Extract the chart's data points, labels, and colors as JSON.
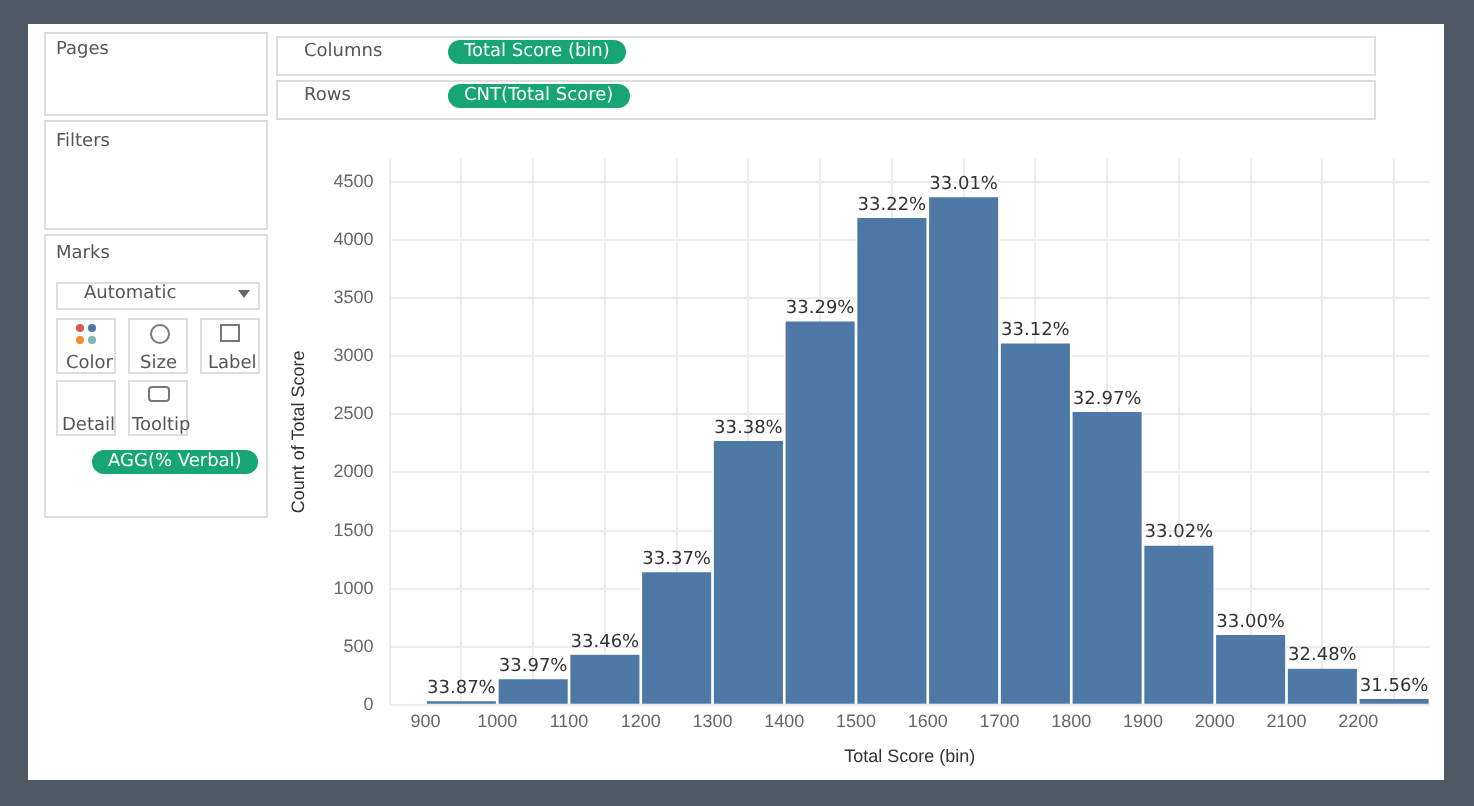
{
  "chart_data": {
    "type": "histogram",
    "xlabel": "Total Score (bin)",
    "ylabel": "Count of Total Score",
    "bins": [
      900,
      1000,
      1100,
      1200,
      1300,
      1400,
      1500,
      1600,
      1700,
      1800,
      1900,
      2000,
      2100,
      2200,
      2300
    ],
    "values": [
      30,
      220,
      430,
      1140,
      2270,
      3300,
      4190,
      4370,
      3110,
      2520,
      1370,
      600,
      310,
      50
    ],
    "color": "#4e79a7",
    "xlim": [
      850,
      2300
    ],
    "xticks": [
      900,
      1000,
      1100,
      1200,
      1300,
      1400,
      1500,
      1600,
      1700,
      1800,
      1900,
      2000,
      2100,
      2200
    ],
    "ylim": [
      0,
      4700
    ],
    "yticks": [
      0,
      500,
      1000,
      1500,
      2000,
      2500,
      3000,
      3500,
      4000,
      4500
    ],
    "grid": true,
    "legend": false,
    "annotations": [
      "Pages",
      "Filters",
      "Marks",
      "Automatic",
      "Color",
      "Size",
      "Label",
      "Detail",
      "Tooltip",
      "AGG(% Verbal)",
      "Columns",
      "Total Score (bin)",
      "Rows",
      "CNT(Total Score)",
      {
        "text": "33.87%",
        "x": 950,
        "y": 30
      },
      {
        "text": "33.97%",
        "x": 1050,
        "y": 220
      },
      {
        "text": "33.46%",
        "x": 1150,
        "y": 430
      },
      {
        "text": "33.37%",
        "x": 1250,
        "y": 1140
      },
      {
        "text": "33.38%",
        "x": 1350,
        "y": 2270
      },
      {
        "text": "33.29%",
        "x": 1450,
        "y": 3300
      },
      {
        "text": "33.22%",
        "x": 1550,
        "y": 4190
      },
      {
        "text": "33.01%",
        "x": 1650,
        "y": 4370
      },
      {
        "text": "33.12%",
        "x": 1750,
        "y": 3110
      },
      {
        "text": "32.97%",
        "x": 1850,
        "y": 2520
      },
      {
        "text": "33.02%",
        "x": 1950,
        "y": 1370
      },
      {
        "text": "33.00%",
        "x": 2050,
        "y": 600
      },
      {
        "text": "32.48%",
        "x": 2150,
        "y": 310
      },
      {
        "text": "31.56%",
        "x": 2250,
        "y": 50
      }
    ]
  }
}
